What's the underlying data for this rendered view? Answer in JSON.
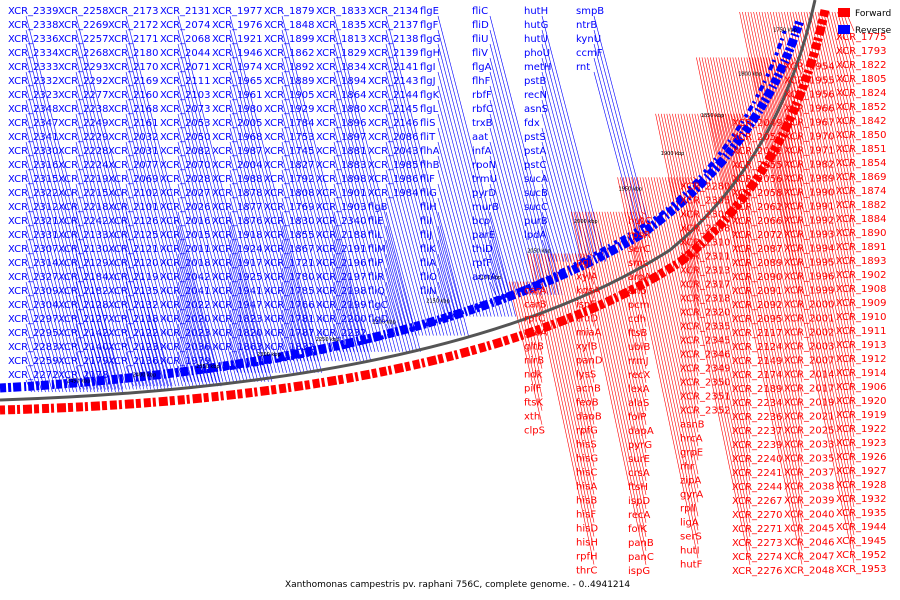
{
  "caption": "Xanthomonas campestris pv. raphani 756C, complete genome. - 0..4941214",
  "legend": [
    {
      "label": "Forward",
      "color": "#ff0000"
    },
    {
      "label": "Reverse",
      "color": "#0000ff"
    }
  ],
  "colors": {
    "forward": "#ff0000",
    "reverse": "#0000ff",
    "backbone": "#555555"
  },
  "ticks": [
    "1750 kbp",
    "1800 kbp",
    "1850 kbp",
    "1900 kbp",
    "1950 kbp",
    "2000 kbp",
    "2050 kbp",
    "2100 kbp",
    "2150 kbp",
    "2200 kbp",
    "2250 kbp",
    "2300 kbp",
    "2350 kbp",
    "2400 kbp",
    "2450 kbp"
  ],
  "reverse_genes": [
    "XCR_2339",
    "XCR_2338",
    "XCR_2336",
    "XCR_2334",
    "XCR_2333",
    "XCR_2332",
    "XCR_2323",
    "XCR_2348",
    "XCR_2347",
    "XCR_2341",
    "XCR_2330",
    "XCR_2316",
    "XCR_2315",
    "XCR_2322",
    "XCR_2312",
    "XCR_2321",
    "XCR_2331",
    "XCR_2307",
    "XCR_2314",
    "XCR_2327",
    "XCR_2309",
    "XCR_2304",
    "XCR_2297",
    "XCR_2295",
    "XCR_2283",
    "XCR_2259",
    "XCR_2272",
    "XCR_2258",
    "XCR_2269",
    "XCR_2257",
    "XCR_2268",
    "XCR_2293",
    "XCR_2292",
    "XCR_2277",
    "XCR_2238",
    "XCR_2249",
    "XCR_2229",
    "XCR_2228",
    "XCR_2224",
    "XCR_2219",
    "XCR_2215",
    "XCR_2218",
    "XCR_2242",
    "XCR_2133",
    "XCR_2130",
    "XCR_2129",
    "XCR_2184",
    "XCR_2182",
    "XCR_2128",
    "XCR_2127",
    "XCR_2142",
    "XCR_2140",
    "XCR_2179",
    "XCR_2178",
    "XCR_2173",
    "XCR_2172",
    "XCR_2171",
    "XCR_2180",
    "XCR_2170",
    "XCR_2169",
    "XCR_2160",
    "XCR_2168",
    "XCR_2161",
    "XCR_2032",
    "XCR_2031",
    "XCR_2077",
    "XCR_2069",
    "XCR_2102",
    "XCR_2101",
    "XCR_2126",
    "XCR_2125",
    "XCR_2121",
    "XCR_2120",
    "XCR_2119",
    "XCR_2135",
    "XCR_2132",
    "XCR_2118",
    "XCR_2122",
    "XCR_2123",
    "XCR_2136",
    "XCR_2131",
    "XCR_2074",
    "XCR_2068",
    "XCR_2044",
    "XCR_2071",
    "XCR_2111",
    "XCR_2103",
    "XCR_2073",
    "XCR_2053",
    "XCR_2050",
    "XCR_2082",
    "XCR_2070",
    "XCR_2028",
    "XCR_2027",
    "XCR_2026",
    "XCR_2016",
    "XCR_2015",
    "XCR_2011",
    "XCR_2018",
    "XCR_2042",
    "XCR_2041",
    "XCR_2022",
    "XCR_2020",
    "XCR_2023",
    "XCR_2036",
    "XCR_1979",
    "XCR_1977",
    "XCR_1976",
    "XCR_1921",
    "XCR_1946",
    "XCR_1974",
    "XCR_1965",
    "XCR_1961",
    "XCR_1980",
    "XCR_2005",
    "XCR_1968",
    "XCR_1987",
    "XCR_2004",
    "XCR_1988",
    "XCR_1878",
    "XCR_1877",
    "XCR_1876",
    "XCR_1918",
    "XCR_1924",
    "XCR_1917",
    "XCR_1925",
    "XCR_1941",
    "XCR_1947",
    "XCR_1823",
    "XCR_1820",
    "XCR_1863",
    "XCR_1879",
    "XCR_1848",
    "XCR_1899",
    "XCR_1862",
    "XCR_1892",
    "XCR_1889",
    "XCR_1905",
    "XCR_1929",
    "XCR_1784",
    "XCR_1753",
    "XCR_1745",
    "XCR_1827",
    "XCR_1792",
    "XCR_1808",
    "XCR_1769",
    "XCR_1830",
    "XCR_1855",
    "XCR_1867",
    "XCR_1721",
    "XCR_1780",
    "XCR_1785",
    "XCR_1766",
    "XCR_1781",
    "XCR_1787",
    "XCR_1832",
    "XCR_1833",
    "XCR_1835",
    "XCR_1813",
    "XCR_1829",
    "XCR_1834",
    "XCR_1894",
    "XCR_1864",
    "XCR_1880",
    "XCR_1896",
    "XCR_1897",
    "XCR_1881",
    "XCR_1883",
    "XCR_1898",
    "XCR_1901",
    "XCR_1903",
    "XCR_2340",
    "XCR_2188",
    "XCR_2191",
    "XCR_2196",
    "XCR_2197",
    "XCR_2198",
    "XCR_2199",
    "XCR_2200",
    "XCR_2232",
    "XCR_2134",
    "XCR_2137",
    "XCR_2138",
    "XCR_2139",
    "XCR_2141",
    "XCR_2143",
    "XCR_2144",
    "XCR_2145",
    "XCR_2146",
    "XCR_2086",
    "XCR_2043",
    "XCR_1985",
    "XCR_1986",
    "XCR_1984"
  ],
  "reverse_named": [
    "flgB",
    "fliE",
    "fliL",
    "fliM",
    "fliP",
    "fliR",
    "fliQ",
    "flgC",
    "flgD",
    "flgE",
    "flgF",
    "flgG",
    "flgH",
    "flgI",
    "flgJ",
    "flgK",
    "flgL",
    "fliS",
    "fliT",
    "flhA",
    "flhB",
    "fliF",
    "fliG",
    "fliH",
    "fliI",
    "fliJ",
    "fliK",
    "fliA",
    "fliO",
    "fliN",
    "fliC",
    "fliD",
    "fliU",
    "fliV",
    "flgA",
    "flhF",
    "rbfF",
    "rbfC",
    "trxB",
    "aat",
    "infA",
    "rpoN",
    "trmU",
    "pyrD",
    "murB",
    "bcp",
    "parE",
    "thiD",
    "rpfF",
    "acnA",
    "hutH",
    "hutG",
    "hutU",
    "phoU",
    "metH",
    "pstB",
    "recN",
    "asnS",
    "fdx",
    "pstS",
    "pstA",
    "pstC",
    "sucA",
    "sucB",
    "sucC",
    "purB",
    "lpdA",
    "smpB",
    "ntrB",
    "kynU",
    "ccmF",
    "rnt"
  ],
  "forward_genes": [
    "XCR_1775",
    "XCR_1793",
    "XCR_1822",
    "XCR_1805",
    "XCR_1824",
    "XCR_1852",
    "XCR_1842",
    "XCR_1850",
    "XCR_1851",
    "XCR_1854",
    "XCR_1869",
    "XCR_1874",
    "XCR_1882",
    "XCR_1884",
    "XCR_1890",
    "XCR_1891",
    "XCR_1893",
    "XCR_1902",
    "XCR_1908",
    "XCR_1909",
    "XCR_1910",
    "XCR_1911",
    "XCR_1913",
    "XCR_1912",
    "XCR_1914",
    "XCR_1906",
    "XCR_1920",
    "XCR_1919",
    "XCR_1922",
    "XCR_1923",
    "XCR_1926",
    "XCR_1927",
    "XCR_1928",
    "XCR_1932",
    "XCR_1935",
    "XCR_1944",
    "XCR_1945",
    "XCR_1952",
    "XCR_1953",
    "XCR_1954",
    "XCR_1955",
    "XCR_1956",
    "XCR_1966",
    "XCR_1967",
    "XCR_1970",
    "XCR_1971",
    "XCR_1982",
    "XCR_1989",
    "XCR_1990",
    "XCR_1991",
    "XCR_1992",
    "XCR_1993",
    "XCR_1994",
    "XCR_1995",
    "XCR_1996",
    "XCR_1999",
    "XCR_2000",
    "XCR_2001",
    "XCR_2002",
    "XCR_2003",
    "XCR_2007",
    "XCR_2014",
    "XCR_2017",
    "XCR_2019",
    "XCR_2021",
    "XCR_2025",
    "XCR_2033",
    "XCR_2035",
    "XCR_2037",
    "XCR_2038",
    "XCR_2039",
    "XCR_2040",
    "XCR_2045",
    "XCR_2046",
    "XCR_2047",
    "XCR_2048",
    "XCR_2049",
    "XCR_2051",
    "XCR_2052",
    "XCR_2055",
    "XCR_2056",
    "XCR_2058",
    "XCR_2062",
    "XCR_2066",
    "XCR_2072",
    "XCR_2087",
    "XCR_2089",
    "XCR_2090",
    "XCR_2091",
    "XCR_2092",
    "XCR_2095",
    "XCR_2117",
    "XCR_2124",
    "XCR_2149",
    "XCR_2174",
    "XCR_2189",
    "XCR_2234",
    "XCR_2236",
    "XCR_2237",
    "XCR_2239",
    "XCR_2240",
    "XCR_2241",
    "XCR_2244",
    "XCR_2267",
    "XCR_2270",
    "XCR_2271",
    "XCR_2273",
    "XCR_2274",
    "XCR_2276",
    "XCR_2280",
    "XCR_2305",
    "XCR_2306",
    "XCR_2308",
    "XCR_2310",
    "XCR_2311",
    "XCR_2313",
    "XCR_2317",
    "XCR_2318",
    "XCR_2320",
    "XCR_2335",
    "XCR_2345",
    "XCR_2346",
    "XCR_2349",
    "XCR_2350",
    "XCR_2351",
    "XCR_2352"
  ],
  "forward_named": [
    "asnB",
    "hrcA",
    "grpE",
    "rhr",
    "zipA",
    "gyrA",
    "rpll",
    "ligA",
    "serS",
    "hutI",
    "hutF",
    "hutC",
    "rpsR",
    "serC",
    "smc",
    "aroA",
    "eno",
    "pcm",
    "cdh",
    "ftsB",
    "ubiB",
    "rrmJ",
    "recX",
    "lexA",
    "alaS",
    "folP",
    "dapA",
    "pyrG",
    "surE",
    "crsA",
    "ftsH",
    "ispD",
    "recA",
    "folK",
    "panB",
    "panC",
    "ispG",
    "pgi",
    "xylA",
    "kdsA",
    "ispF",
    "truD",
    "miaA",
    "xylB",
    "panD",
    "lysS",
    "acnB",
    "feoB",
    "dapB",
    "rpfG",
    "hisS",
    "hisG",
    "hisC",
    "hisA",
    "hisB",
    "hisF",
    "hisD",
    "hisH",
    "rpfH",
    "thrC",
    "carA",
    "carB",
    "rpfC",
    "greA",
    "gltB",
    "nirB",
    "ndk",
    "pilF",
    "ftsK",
    "xth",
    "clpS"
  ]
}
